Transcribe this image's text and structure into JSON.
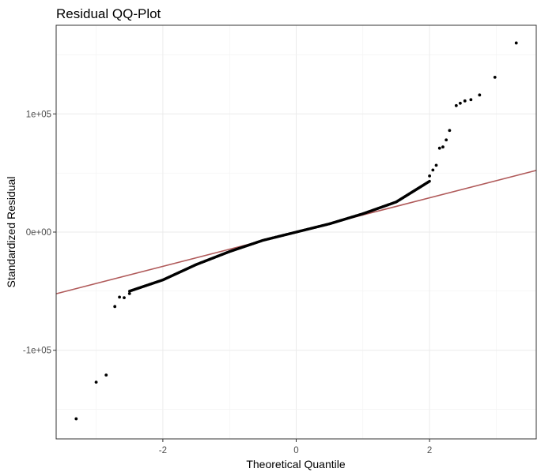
{
  "chart_data": {
    "type": "scatter",
    "title": "Residual QQ-Plot",
    "xlabel": "Theoretical Quantile",
    "ylabel": "Standardized Residual",
    "xlim": [
      -3.6,
      3.6
    ],
    "ylim": [
      -175000,
      175000
    ],
    "x_ticks": [
      -2,
      0,
      2
    ],
    "x_tick_labels": [
      "-2",
      "0",
      "2"
    ],
    "y_ticks": [
      -100000,
      0,
      100000
    ],
    "y_tick_labels": [
      "-1e+05",
      "0e+00",
      "1e+05"
    ],
    "grid": true,
    "reference_line": {
      "slope": 14500,
      "intercept": 0,
      "color": "#b05a5a"
    },
    "point_color": "#000000",
    "tail_points": [
      {
        "x": -3.3,
        "y": -158000
      },
      {
        "x": -3.0,
        "y": -127000
      },
      {
        "x": -2.85,
        "y": -121000
      },
      {
        "x": -2.72,
        "y": -63000
      },
      {
        "x": -2.65,
        "y": -55000
      },
      {
        "x": -2.58,
        "y": -55500
      },
      {
        "x": -2.5,
        "y": -52000
      },
      {
        "x": 2.0,
        "y": 47500
      },
      {
        "x": 2.05,
        "y": 52500
      },
      {
        "x": 2.1,
        "y": 56500
      },
      {
        "x": 2.15,
        "y": 71000
      },
      {
        "x": 2.2,
        "y": 72000
      },
      {
        "x": 2.25,
        "y": 78000
      },
      {
        "x": 2.3,
        "y": 86000
      },
      {
        "x": 2.4,
        "y": 107000
      },
      {
        "x": 2.46,
        "y": 109000
      },
      {
        "x": 2.53,
        "y": 111000
      },
      {
        "x": 2.62,
        "y": 112000
      },
      {
        "x": 2.75,
        "y": 116000
      },
      {
        "x": 2.98,
        "y": 131000
      },
      {
        "x": 3.3,
        "y": 160000
      }
    ],
    "body_curve": [
      {
        "x": -2.5,
        "y": -50000
      },
      {
        "x": -2.0,
        "y": -40500
      },
      {
        "x": -1.5,
        "y": -27500
      },
      {
        "x": -1.0,
        "y": -16500
      },
      {
        "x": -0.5,
        "y": -7000
      },
      {
        "x": 0.0,
        "y": 0
      },
      {
        "x": 0.5,
        "y": 7000
      },
      {
        "x": 1.0,
        "y": 15500
      },
      {
        "x": 1.5,
        "y": 25500
      },
      {
        "x": 1.8,
        "y": 36000
      },
      {
        "x": 2.0,
        "y": 43000
      }
    ],
    "body_point_count": 420
  }
}
